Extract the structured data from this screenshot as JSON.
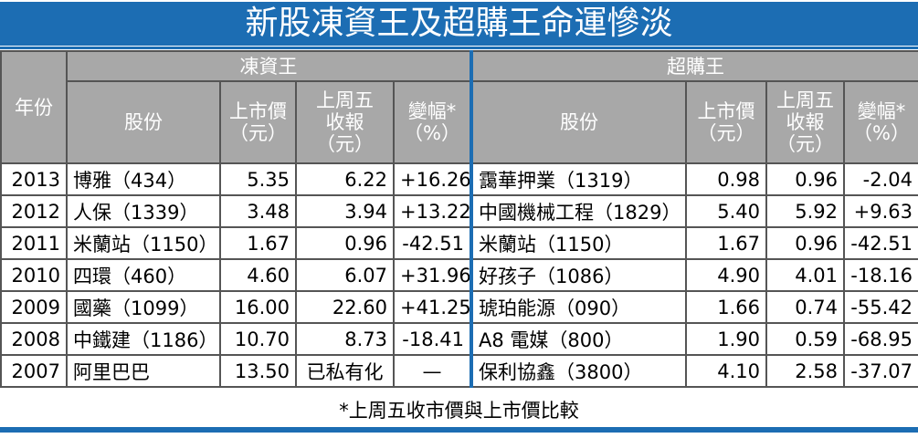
{
  "title": "新股凍資王及超購王命運慘淡",
  "table": {
    "year_header": "年份",
    "groups": [
      "凍資王",
      "超購王"
    ],
    "group_columns": [
      [
        [
          "股份"
        ],
        [
          "上市價",
          "（元）"
        ],
        [
          "上周五",
          "收報",
          "（元）"
        ],
        [
          "變幅*",
          "（%）"
        ]
      ],
      [
        [
          "股份"
        ],
        [
          "上市價",
          "（元）"
        ],
        [
          "上周五",
          "收報",
          "（元）"
        ],
        [
          "變幅*",
          "（%）"
        ]
      ]
    ],
    "rows": [
      [
        "2013",
        "博雅（434）",
        "5.35",
        "6.22",
        "+16.26",
        "靄華押業（1319）",
        "0.98",
        "0.96",
        "-2.04"
      ],
      [
        "2012",
        "人保（1339）",
        "3.48",
        "3.94",
        "+13.22",
        "中國機械工程（1829）",
        "5.40",
        "5.92",
        "+9.63"
      ],
      [
        "2011",
        "米蘭站（1150）",
        "1.67",
        "0.96",
        "-42.51",
        "米蘭站（1150）",
        "1.67",
        "0.96",
        "-42.51"
      ],
      [
        "2010",
        "四環（460）",
        "4.60",
        "6.07",
        "+31.96",
        "好孩子（1086）",
        "4.90",
        "4.01",
        "-18.16"
      ],
      [
        "2009",
        "國藥（1099）",
        "16.00",
        "22.60",
        "+41.25",
        "琥珀能源（090）",
        "1.66",
        "0.74",
        "-55.42"
      ],
      [
        "2008",
        "中鐵建（1186）",
        "10.70",
        "8.73",
        "-18.41",
        "A8 電媒（800）",
        "1.90",
        "0.59",
        "-68.95"
      ],
      [
        "2007",
        "阿里巴巴",
        "13.50",
        "已私有化",
        "—",
        "保利協鑫（3800）",
        "4.10",
        "2.58",
        "-37.07"
      ]
    ],
    "footnote": "*上周五收市價與上市價比較"
  }
}
